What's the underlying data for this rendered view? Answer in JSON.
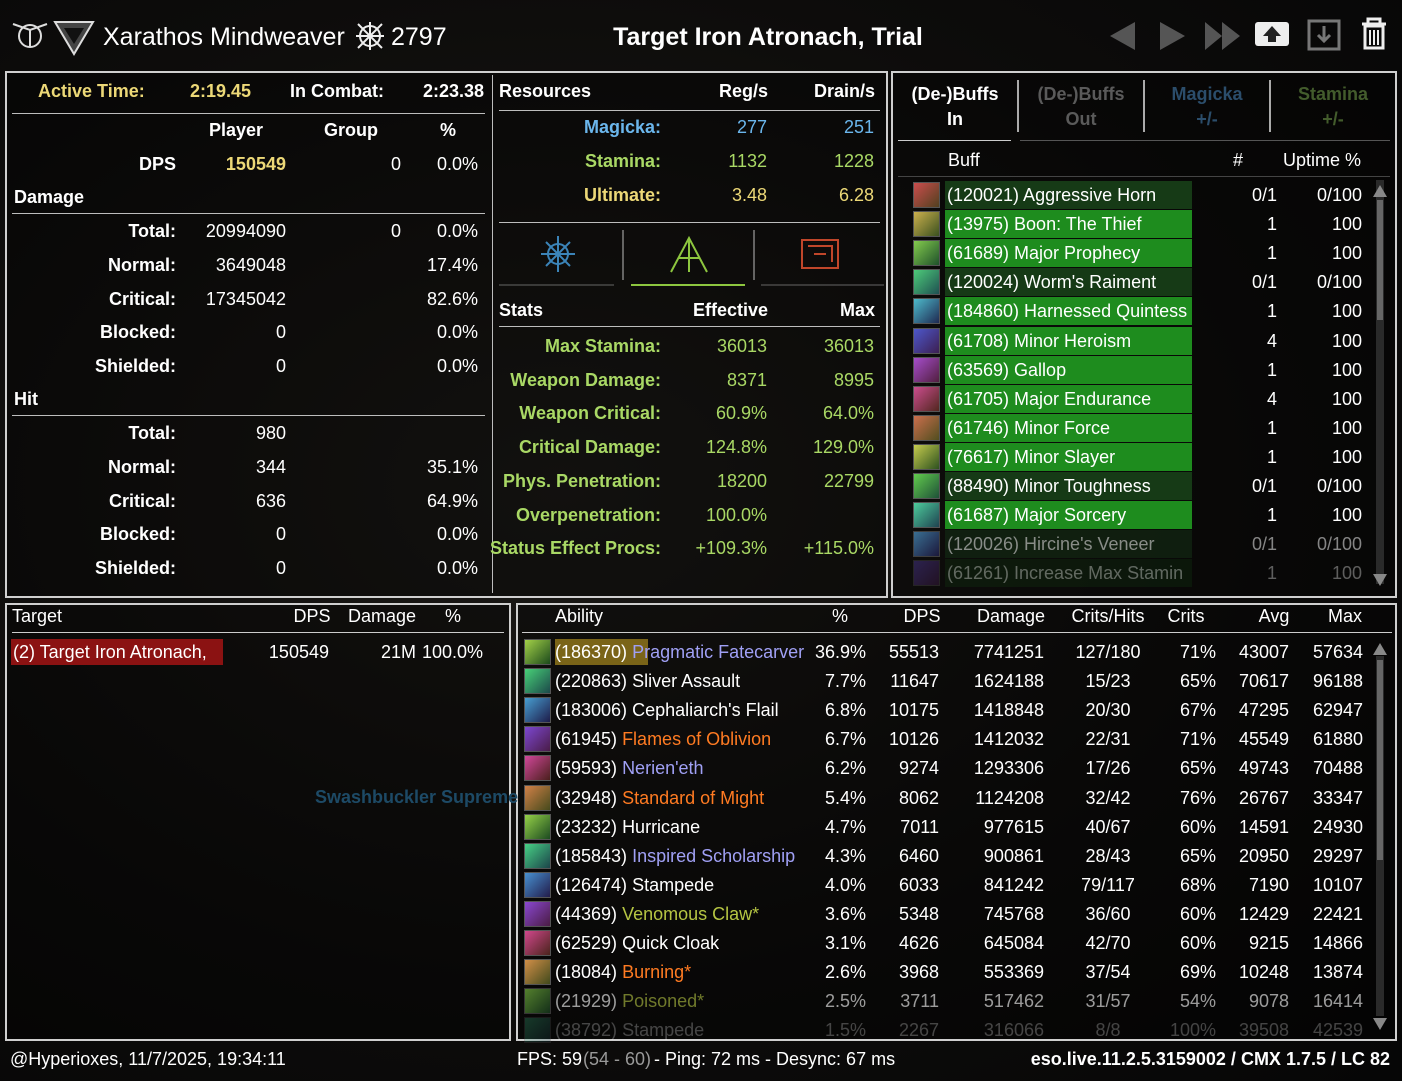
{
  "header": {
    "player_name": "Xarathos Mindweaver",
    "champion_points": "2797",
    "title": "Target Iron Atronach, Trial"
  },
  "summary": {
    "active_time_label": "Active Time:",
    "active_time": "2:19.45",
    "in_combat_label": "In Combat:",
    "in_combat": "2:23.38",
    "columns": [
      "Player",
      "Group",
      "%"
    ],
    "dps": {
      "label": "DPS",
      "player": "150549",
      "group": "0",
      "pct": "0.0%"
    },
    "damage_heading": "Damage",
    "damage_rows": [
      {
        "label": "Total:",
        "player": "20994090",
        "group": "0",
        "pct": "0.0%"
      },
      {
        "label": "Normal:",
        "player": "3649048",
        "pct": "17.4%"
      },
      {
        "label": "Critical:",
        "player": "17345042",
        "pct": "82.6%"
      },
      {
        "label": "Blocked:",
        "player": "0",
        "pct": "0.0%"
      },
      {
        "label": "Shielded:",
        "player": "0",
        "pct": "0.0%"
      }
    ],
    "hit_heading": "Hit",
    "hit_rows": [
      {
        "label": "Total:",
        "player": "980"
      },
      {
        "label": "Normal:",
        "player": "344",
        "pct": "35.1%"
      },
      {
        "label": "Critical:",
        "player": "636",
        "pct": "64.9%"
      },
      {
        "label": "Blocked:",
        "player": "0",
        "pct": "0.0%"
      },
      {
        "label": "Shielded:",
        "player": "0",
        "pct": "0.0%"
      }
    ]
  },
  "resources": {
    "columns": [
      "Resources",
      "Reg/s",
      "Drain/s"
    ],
    "rows": [
      {
        "label": "Magicka:",
        "reg": "277",
        "drain": "251",
        "color": "#6bb6ec"
      },
      {
        "label": "Stamina:",
        "reg": "1132",
        "drain": "1228",
        "color": "#a9d865"
      },
      {
        "label": "Ultimate:",
        "reg": "3.48",
        "drain": "6.28",
        "color": "#ecd877"
      }
    ]
  },
  "stats": {
    "columns": [
      "Stats",
      "Effective",
      "Max"
    ],
    "rows": [
      {
        "label": "Max Stamina:",
        "effective": "36013",
        "max": "36013"
      },
      {
        "label": "Weapon Damage:",
        "effective": "8371",
        "max": "8995"
      },
      {
        "label": "Weapon Critical:",
        "effective": "60.9%",
        "max": "64.0%"
      },
      {
        "label": "Critical Damage:",
        "effective": "124.8%",
        "max": "129.0%"
      },
      {
        "label": "Phys. Penetration:",
        "effective": "18200",
        "max": "22799"
      },
      {
        "label": "Overpenetration:",
        "effective": "100.0%"
      },
      {
        "label": "Status Effect Procs:",
        "effective": "+109.3%",
        "max": "+115.0%"
      }
    ]
  },
  "buffs": {
    "tabs": [
      {
        "title": "(De-)Buffs",
        "sub": "In",
        "color": "#ffffff"
      },
      {
        "title": "(De-)Buffs",
        "sub": "Out",
        "color": "#5a5a5a"
      },
      {
        "title": "Magicka",
        "sub": "+/-",
        "color": "#2b4d6b"
      },
      {
        "title": "Stamina",
        "sub": "+/-",
        "color": "#435c2c"
      }
    ],
    "columns": [
      "Buff",
      "#",
      "Uptime %"
    ],
    "rows": [
      {
        "name": "(120021) Aggressive Horn",
        "count": "0/1",
        "uptime": "0/100",
        "color": "#163a16"
      },
      {
        "name": "(13975) Boon: The Thief",
        "count": "1",
        "uptime": "100",
        "color": "#1e8c1e"
      },
      {
        "name": "(61689) Major Prophecy",
        "count": "1",
        "uptime": "100",
        "color": "#1e8c1e"
      },
      {
        "name": "(120024) Worm's Raiment",
        "count": "0/1",
        "uptime": "0/100",
        "color": "#163a16"
      },
      {
        "name": "(184860) Harnessed Quintess",
        "count": "1",
        "uptime": "100",
        "color": "#1e8c1e"
      },
      {
        "name": "(61708) Minor Heroism",
        "count": "4",
        "uptime": "100",
        "color": "#1e8c1e"
      },
      {
        "name": "(63569) Gallop",
        "count": "1",
        "uptime": "100",
        "color": "#1e8c1e"
      },
      {
        "name": "(61705) Major Endurance",
        "count": "4",
        "uptime": "100",
        "color": "#1e8c1e"
      },
      {
        "name": "(61746) Minor Force",
        "count": "1",
        "uptime": "100",
        "color": "#1e8c1e"
      },
      {
        "name": "(76617) Minor Slayer",
        "count": "1",
        "uptime": "100",
        "color": "#1e8c1e"
      },
      {
        "name": "(88490) Minor Toughness",
        "count": "0/1",
        "uptime": "0/100",
        "color": "#163a16"
      },
      {
        "name": "(61687) Major Sorcery",
        "count": "1",
        "uptime": "100",
        "color": "#1e8c1e"
      },
      {
        "name": "(120026) Hircine's Veneer",
        "count": "0/1",
        "uptime": "0/100",
        "color": "#132813"
      },
      {
        "name": "(61261) Increase Max Stamin",
        "count": "1",
        "uptime": "100",
        "color": "#123312"
      }
    ]
  },
  "targets": {
    "columns": [
      "Target",
      "DPS",
      "Damage",
      "%"
    ],
    "rows": [
      {
        "name": "(2) Target Iron Atronach,",
        "dps": "150549",
        "damage": "21M",
        "pct": "100.0%"
      }
    ],
    "background_text": "Swashbuckler Supreme"
  },
  "abilities": {
    "columns": [
      "Ability",
      "%",
      "DPS",
      "Damage",
      "Crits/Hits",
      "Crits",
      "Avg",
      "Max"
    ],
    "rows": [
      {
        "id": "(186370)",
        "name": "Pragmatic Fatecarver",
        "color": "#a0a0f5",
        "pct": "36.9%",
        "dps": "55513",
        "damage": "7741251",
        "crits_hits": "127/180",
        "crits": "71%",
        "avg": "43007",
        "max": "57634"
      },
      {
        "id": "(220863)",
        "name": "Sliver Assault",
        "color": "#ffffff",
        "pct": "7.7%",
        "dps": "11647",
        "damage": "1624188",
        "crits_hits": "15/23",
        "crits": "65%",
        "avg": "70617",
        "max": "96188"
      },
      {
        "id": "(183006)",
        "name": "Cephaliarch's Flail",
        "color": "#ffffff",
        "pct": "6.8%",
        "dps": "10175",
        "damage": "1418848",
        "crits_hits": "20/30",
        "crits": "67%",
        "avg": "47295",
        "max": "62947"
      },
      {
        "id": "(61945)",
        "name": "Flames of Oblivion",
        "color": "#ff7b22",
        "pct": "6.7%",
        "dps": "10126",
        "damage": "1412032",
        "crits_hits": "22/31",
        "crits": "71%",
        "avg": "45549",
        "max": "61880"
      },
      {
        "id": "(59593)",
        "name": "Nerien'eth",
        "color": "#a0a0f5",
        "pct": "6.2%",
        "dps": "9274",
        "damage": "1293306",
        "crits_hits": "17/26",
        "crits": "65%",
        "avg": "49743",
        "max": "70488"
      },
      {
        "id": "(32948)",
        "name": "Standard of Might",
        "color": "#ff7b22",
        "pct": "5.4%",
        "dps": "8062",
        "damage": "1124208",
        "crits_hits": "32/42",
        "crits": "76%",
        "avg": "26767",
        "max": "33347"
      },
      {
        "id": "(23232)",
        "name": "Hurricane",
        "color": "#ffffff",
        "pct": "4.7%",
        "dps": "7011",
        "damage": "977615",
        "crits_hits": "40/67",
        "crits": "60%",
        "avg": "14591",
        "max": "24930"
      },
      {
        "id": "(185843)",
        "name": "Inspired Scholarship",
        "color": "#a0a0f5",
        "pct": "4.3%",
        "dps": "6460",
        "damage": "900861",
        "crits_hits": "28/43",
        "crits": "65%",
        "avg": "20950",
        "max": "29297"
      },
      {
        "id": "(126474)",
        "name": "Stampede",
        "color": "#ffffff",
        "pct": "4.0%",
        "dps": "6033",
        "damage": "841242",
        "crits_hits": "79/117",
        "crits": "68%",
        "avg": "7190",
        "max": "10107"
      },
      {
        "id": "(44369)",
        "name": "Venomous Claw*",
        "color": "#b5c543",
        "pct": "3.6%",
        "dps": "5348",
        "damage": "745768",
        "crits_hits": "36/60",
        "crits": "60%",
        "avg": "12429",
        "max": "22421"
      },
      {
        "id": "(62529)",
        "name": "Quick Cloak",
        "color": "#ffffff",
        "pct": "3.1%",
        "dps": "4626",
        "damage": "645084",
        "crits_hits": "42/70",
        "crits": "60%",
        "avg": "9215",
        "max": "14866"
      },
      {
        "id": "(18084)",
        "name": "Burning*",
        "color": "#ff7b22",
        "pct": "2.6%",
        "dps": "3968",
        "damage": "553369",
        "crits_hits": "37/54",
        "crits": "69%",
        "avg": "10248",
        "max": "13874"
      },
      {
        "id": "(21929)",
        "name": "Poisoned*",
        "color": "#b5c543",
        "pct": "2.5%",
        "dps": "3711",
        "damage": "517462",
        "crits_hits": "31/57",
        "crits": "54%",
        "avg": "9078",
        "max": "16414"
      },
      {
        "id": "(38792)",
        "name": "Stampede",
        "color": "#ffffff",
        "pct": "1.5%",
        "dps": "2267",
        "damage": "316066",
        "crits_hits": "8/8",
        "crits": "100%",
        "avg": "39508",
        "max": "42539"
      }
    ]
  },
  "footer": {
    "user_time": "@Hyperioxes, 11/7/2025, 19:34:11",
    "fps": "FPS: 59",
    "fps_range": "(54 - 60)",
    "network": "- Ping: 72 ms - Desync: 67 ms",
    "version": "eso.live.11.2.5.3159002 / CMX 1.7.5 / LC 82"
  }
}
